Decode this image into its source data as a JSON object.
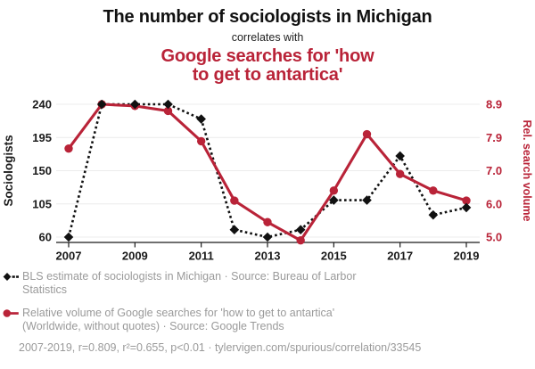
{
  "colors": {
    "accent_red": "#b92338",
    "line_black": "#111111",
    "text_gray": "#9a9a9a",
    "gridline": "#ececec",
    "axis": "#1a1a1a"
  },
  "header": {
    "title": "The number of sociologists in Michigan",
    "connector": "correlates with",
    "subtitle_lines": [
      "Google searches for 'how",
      "to get to antartica'"
    ]
  },
  "chart_data": {
    "type": "line",
    "x": [
      2007,
      2008,
      2009,
      2010,
      2011,
      2012,
      2013,
      2014,
      2015,
      2016,
      2017,
      2018,
      2019
    ],
    "series": [
      {
        "name": "BLS estimate of sociologists in Michigan",
        "axis": "left",
        "color": "#111111",
        "style": "dotted-diamond",
        "values": [
          60,
          240,
          240,
          240,
          220,
          70,
          60,
          70,
          110,
          110,
          170,
          90,
          100
        ]
      },
      {
        "name": "Relative volume of Google searches for 'how to get to antartica'",
        "axis": "right",
        "color": "#b92338",
        "style": "solid-circle",
        "values": [
          7.6,
          8.9,
          8.85,
          8.7,
          7.8,
          6.1,
          5.45,
          4.9,
          6.4,
          8.0,
          6.9,
          6.4,
          6.1
        ]
      }
    ],
    "axes": {
      "left": {
        "label": "Sociologists",
        "tick_labels": [
          "240",
          "195",
          "150",
          "105",
          "60"
        ],
        "range": [
          60,
          240
        ]
      },
      "right": {
        "label": "Rel. search volume",
        "tick_labels": [
          "8.9",
          "7.9",
          "7.0",
          "6.0",
          "5.0"
        ],
        "range": [
          4.9,
          8.9
        ]
      },
      "x": {
        "tick_labels": [
          "2007",
          "2009",
          "2011",
          "2013",
          "2015",
          "2017",
          "2019"
        ],
        "range": [
          2007,
          2019
        ]
      }
    },
    "grid": "horizontal",
    "legend_position": "below"
  },
  "legend": {
    "items": [
      {
        "icon": "diamond-dashed",
        "lines": [
          "BLS estimate of sociologists in Michigan · Source: Bureau of Larbor",
          "Statistics"
        ]
      },
      {
        "icon": "circle-line",
        "lines": [
          "Relative volume of Google searches for 'how to get to antartica'",
          "(Worldwide, without quotes) · Source: Google Trends"
        ]
      }
    ]
  },
  "footer": {
    "stats": "2007-2019, r=0.809, r²=0.655, p<0.01 · tylervigen.com/spurious/correlation/33545"
  }
}
